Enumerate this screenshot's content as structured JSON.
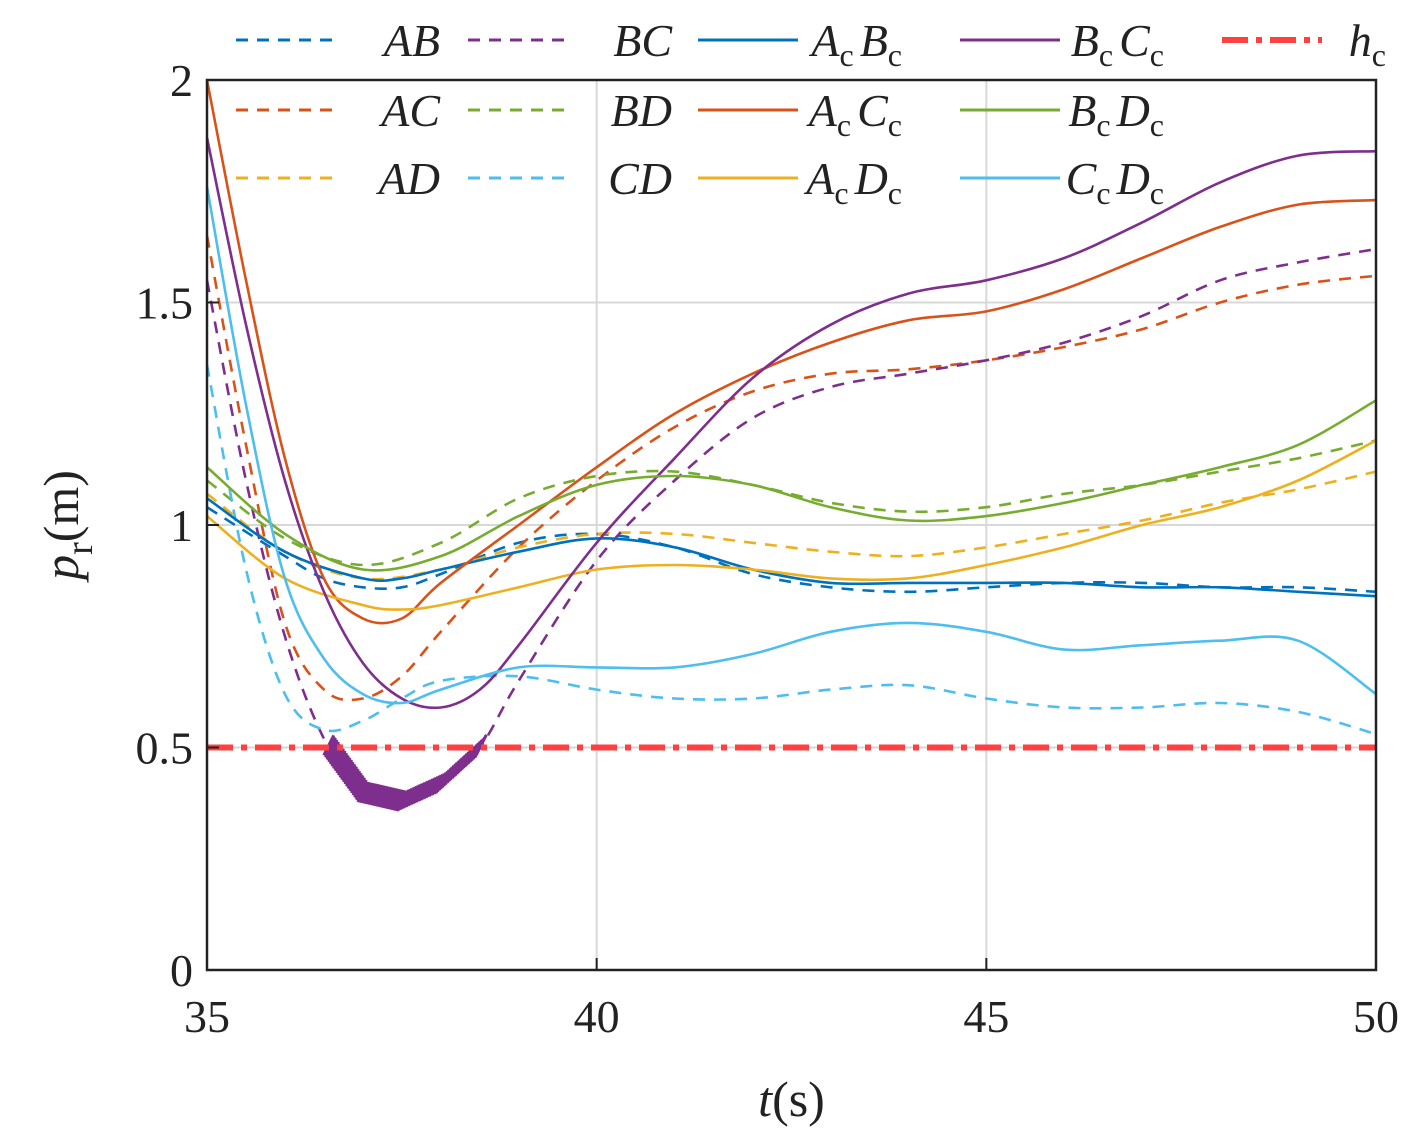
{
  "chart_data": {
    "type": "line",
    "xlabel_main": "t",
    "xlabel_unit": "(s)",
    "ylabel_main": "p",
    "ylabel_sub": "r",
    "ylabel_unit": "(m)",
    "xlim": [
      35,
      50
    ],
    "ylim": [
      0,
      2
    ],
    "xticks": [
      35,
      40,
      45,
      50
    ],
    "yticks": [
      0,
      0.5,
      1,
      1.5,
      2
    ],
    "xtick_labels": [
      "35",
      "40",
      "45",
      "50"
    ],
    "ytick_labels": [
      "0",
      "0.5",
      "1",
      "1.5",
      "2"
    ],
    "grid": true,
    "legend_position": "top",
    "threshold": {
      "name": "h",
      "sub": "c",
      "value": 0.5,
      "color": "#ff4040"
    },
    "violation_color": "#7e2f8e",
    "series": [
      {
        "base": "AB",
        "sub1": "",
        "sub2": "",
        "style": "dashed",
        "color": "#0072bd",
        "x": [
          35,
          36,
          36.5,
          37,
          37.5,
          38,
          39,
          40,
          41,
          42,
          43,
          44,
          45,
          46,
          47,
          48,
          49,
          50
        ],
        "y": [
          1.04,
          0.93,
          0.88,
          0.86,
          0.86,
          0.89,
          0.96,
          0.98,
          0.95,
          0.89,
          0.86,
          0.85,
          0.86,
          0.87,
          0.87,
          0.86,
          0.86,
          0.85
        ]
      },
      {
        "base": "AC",
        "sub1": "",
        "sub2": "",
        "style": "dashed",
        "color": "#d95319",
        "x": [
          35,
          35.5,
          36,
          36.5,
          37,
          37.5,
          38,
          39,
          40,
          41,
          42,
          43,
          44,
          45,
          46,
          47,
          48,
          49,
          50
        ],
        "y": [
          1.65,
          1.18,
          0.78,
          0.63,
          0.61,
          0.66,
          0.76,
          0.95,
          1.1,
          1.22,
          1.3,
          1.34,
          1.35,
          1.37,
          1.4,
          1.44,
          1.5,
          1.54,
          1.56
        ]
      },
      {
        "base": "AD",
        "sub1": "",
        "sub2": "",
        "style": "dashed",
        "color": "#edb120",
        "x": [
          35,
          36,
          37,
          38,
          39,
          40,
          41,
          42,
          43,
          44,
          45,
          46,
          47,
          48,
          49,
          50
        ],
        "y": [
          1.07,
          0.94,
          0.88,
          0.9,
          0.95,
          0.98,
          0.98,
          0.96,
          0.94,
          0.93,
          0.95,
          0.98,
          1.01,
          1.05,
          1.08,
          1.12
        ]
      },
      {
        "base": "BC",
        "sub1": "",
        "sub2": "",
        "style": "dashed",
        "color": "#7e2f8e",
        "x": [
          35,
          35.5,
          36,
          36.5,
          37,
          37.5,
          38,
          38.5,
          39,
          40,
          41,
          42,
          43,
          44,
          45,
          46,
          47,
          48,
          49,
          50
        ],
        "y": [
          1.55,
          1.1,
          0.75,
          0.52,
          0.4,
          0.38,
          0.42,
          0.5,
          0.65,
          0.92,
          1.1,
          1.24,
          1.31,
          1.34,
          1.37,
          1.41,
          1.47,
          1.55,
          1.59,
          1.62
        ]
      },
      {
        "base": "BD",
        "sub1": "",
        "sub2": "",
        "style": "dashed",
        "color": "#77ac30",
        "x": [
          35,
          36,
          37,
          38,
          39,
          40,
          41,
          42,
          43,
          44,
          45,
          46,
          47,
          48,
          49,
          50
        ],
        "y": [
          1.1,
          0.97,
          0.91,
          0.96,
          1.06,
          1.11,
          1.12,
          1.09,
          1.05,
          1.03,
          1.04,
          1.07,
          1.09,
          1.12,
          1.15,
          1.19
        ]
      },
      {
        "base": "CD",
        "sub1": "",
        "sub2": "",
        "style": "dashed",
        "color": "#4dbeee",
        "x": [
          35,
          35.5,
          36,
          36.5,
          37,
          37.5,
          38,
          39,
          40,
          41,
          42,
          43,
          44,
          45,
          46,
          47,
          48,
          49,
          50
        ],
        "y": [
          1.36,
          0.9,
          0.62,
          0.54,
          0.56,
          0.61,
          0.65,
          0.66,
          0.63,
          0.61,
          0.61,
          0.63,
          0.64,
          0.61,
          0.59,
          0.59,
          0.6,
          0.58,
          0.53
        ]
      },
      {
        "base": "A",
        "sub1": "c",
        "base2": "B",
        "sub2": "c",
        "style": "solid",
        "color": "#0072bd",
        "x": [
          35,
          36,
          37,
          37.5,
          38,
          39,
          40,
          41,
          42,
          43,
          44,
          45,
          46,
          47,
          48,
          49,
          50
        ],
        "y": [
          1.06,
          0.94,
          0.88,
          0.88,
          0.9,
          0.94,
          0.97,
          0.95,
          0.9,
          0.87,
          0.87,
          0.87,
          0.87,
          0.86,
          0.86,
          0.85,
          0.84
        ]
      },
      {
        "base": "A",
        "sub1": "c",
        "base2": "C",
        "sub2": "c",
        "style": "solid",
        "color": "#d95319",
        "x": [
          35,
          35.5,
          36,
          36.5,
          37,
          37.5,
          38,
          39,
          40,
          41,
          42,
          43,
          44,
          45,
          46,
          47,
          48,
          49,
          50
        ],
        "y": [
          2.0,
          1.55,
          1.15,
          0.88,
          0.79,
          0.79,
          0.87,
          1.0,
          1.13,
          1.25,
          1.34,
          1.41,
          1.46,
          1.48,
          1.53,
          1.6,
          1.67,
          1.72,
          1.73
        ]
      },
      {
        "base": "A",
        "sub1": "c",
        "base2": "D",
        "sub2": "c",
        "style": "solid",
        "color": "#edb120",
        "x": [
          35,
          36,
          37,
          37.5,
          38,
          39,
          40,
          41,
          42,
          43,
          44,
          45,
          46,
          47,
          48,
          49,
          50
        ],
        "y": [
          1.02,
          0.88,
          0.82,
          0.81,
          0.82,
          0.86,
          0.9,
          0.91,
          0.9,
          0.88,
          0.88,
          0.91,
          0.95,
          1.0,
          1.04,
          1.1,
          1.19
        ]
      },
      {
        "base": "B",
        "sub1": "c",
        "base2": "C",
        "sub2": "c",
        "style": "solid",
        "color": "#7e2f8e",
        "x": [
          35,
          35.5,
          36,
          36.5,
          37,
          37.5,
          38,
          38.5,
          39,
          40,
          41,
          42,
          43,
          44,
          45,
          46,
          47,
          48,
          49,
          50
        ],
        "y": [
          1.87,
          1.45,
          1.1,
          0.85,
          0.69,
          0.61,
          0.59,
          0.63,
          0.73,
          0.96,
          1.15,
          1.33,
          1.45,
          1.52,
          1.55,
          1.6,
          1.68,
          1.77,
          1.83,
          1.84
        ]
      },
      {
        "base": "B",
        "sub1": "c",
        "base2": "D",
        "sub2": "c",
        "style": "solid",
        "color": "#77ac30",
        "x": [
          35,
          36,
          37,
          38,
          39,
          40,
          41,
          42,
          43,
          44,
          45,
          46,
          47,
          48,
          49,
          50
        ],
        "y": [
          1.13,
          0.98,
          0.9,
          0.93,
          1.02,
          1.09,
          1.11,
          1.09,
          1.04,
          1.01,
          1.02,
          1.05,
          1.09,
          1.13,
          1.18,
          1.28
        ]
      },
      {
        "base": "C",
        "sub1": "c",
        "base2": "D",
        "sub2": "c",
        "style": "solid",
        "color": "#4dbeee",
        "x": [
          35,
          35.5,
          36,
          36.5,
          37,
          37.5,
          38,
          39,
          40,
          41,
          42,
          43,
          44,
          45,
          46,
          47,
          48,
          49,
          50
        ],
        "y": [
          1.76,
          1.27,
          0.88,
          0.7,
          0.62,
          0.6,
          0.63,
          0.68,
          0.68,
          0.68,
          0.71,
          0.76,
          0.78,
          0.76,
          0.72,
          0.73,
          0.74,
          0.74,
          0.62
        ]
      }
    ]
  }
}
